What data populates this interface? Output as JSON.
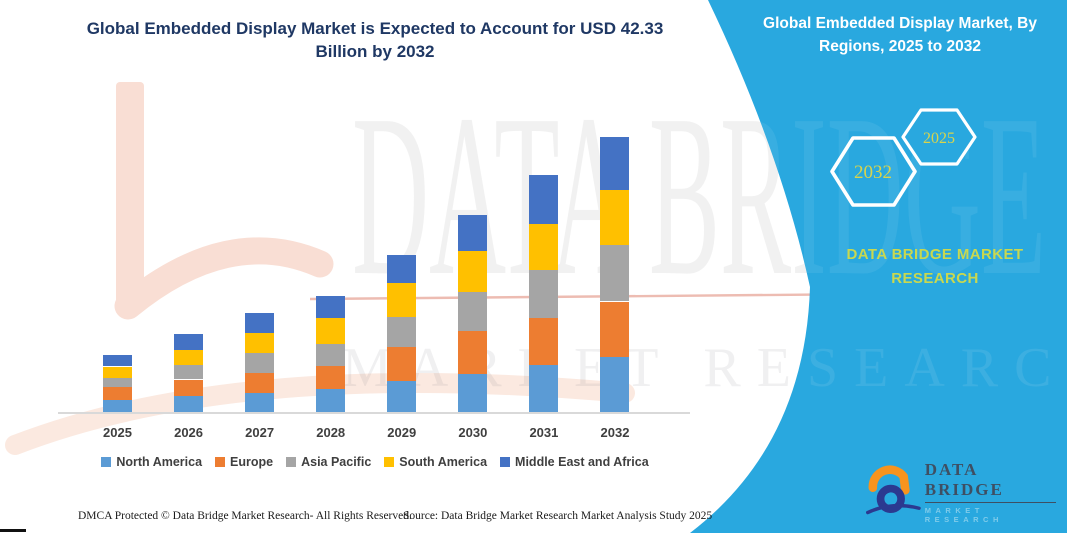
{
  "title": "Global Embedded Display Market is Expected to Account for USD 42.33 Billion by 2032",
  "chart_data": {
    "type": "bar",
    "stacked": true,
    "title": "Global Embedded Display Market is Expected to Account for USD 42.33 Billion by 2032",
    "unit": "USD Billion",
    "categories": [
      "2025",
      "2026",
      "2027",
      "2028",
      "2029",
      "2030",
      "2031",
      "2032"
    ],
    "series": [
      {
        "name": "North America",
        "color": "#5B9BD5",
        "values": [
          1.8,
          2.4,
          3.0,
          3.5,
          4.7,
          5.9,
          7.3,
          8.5
        ]
      },
      {
        "name": "Europe",
        "color": "#ED7D31",
        "values": [
          2.0,
          2.6,
          3.0,
          3.6,
          5.3,
          6.5,
          7.1,
          8.5
        ]
      },
      {
        "name": "Asia Pacific",
        "color": "#A5A5A5",
        "values": [
          1.5,
          2.3,
          3.1,
          3.3,
          4.6,
          6.0,
          7.4,
          8.7
        ]
      },
      {
        "name": "South America",
        "color": "#FFC000",
        "values": [
          1.7,
          2.3,
          3.0,
          4.1,
          5.2,
          6.3,
          7.1,
          8.5
        ]
      },
      {
        "name": "Middle East and Africa",
        "color": "#4472C4",
        "values": [
          1.7,
          2.4,
          3.1,
          3.4,
          4.4,
          5.6,
          7.5,
          8.13
        ]
      }
    ],
    "totals_by_year": [
      8.7,
      12.0,
      15.2,
      17.9,
      24.2,
      30.3,
      36.4,
      42.33
    ],
    "ylim": [
      0,
      45
    ],
    "grid": false,
    "legend_position": "bottom",
    "xlabel": "",
    "ylabel": ""
  },
  "panel": {
    "heading": "Global Embedded Display Market, By Regions, 2025 to 2032",
    "hexagons": [
      {
        "label": "2032"
      },
      {
        "label": "2025"
      }
    ],
    "brand_caption_line1": "DATA BRIDGE MARKET",
    "brand_caption_line2": "RESEARCH",
    "colors": {
      "background": "#29A8DF",
      "hexagon_text": "#D8D44C",
      "caption_text": "#C9D84F"
    }
  },
  "watermark": {
    "line1": "DATA BRIDGE",
    "line2": "MARKET RESEARCH"
  },
  "logo": {
    "title": "DATA BRIDGE",
    "subtitle": "MARKET RESEARCH",
    "orange": "#F7941E",
    "navy": "#2B3990"
  },
  "footer": {
    "left": "DMCA Protected © Data Bridge Market Research-  All Rights Reserved.",
    "right": "Source: Data Bridge Market Research  Market Analysis Study 2025"
  },
  "colors": {
    "title_text": "#1F3864",
    "axis_text": "#3F3F3F",
    "axis_line": "#D9D9D9"
  }
}
